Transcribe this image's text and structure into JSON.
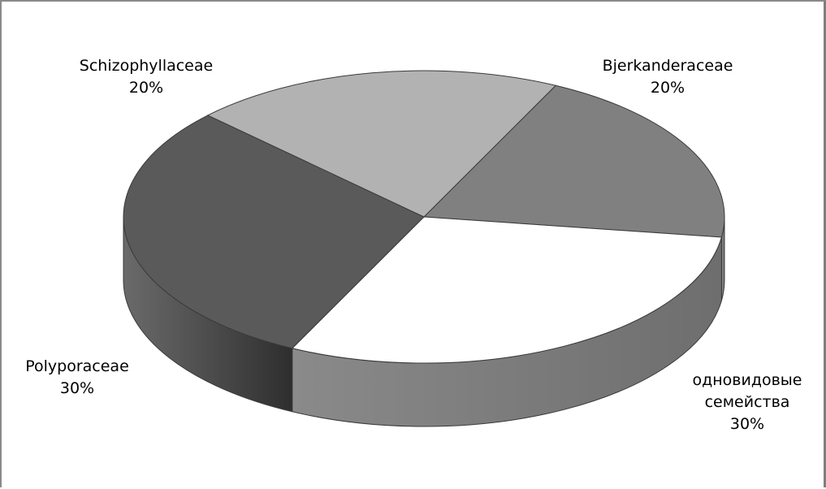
{
  "chart_data": {
    "type": "pie",
    "title": "",
    "slices": [
      {
        "label": "Bjerkanderaceae",
        "value": 20,
        "value_label": "20%",
        "color": "#808080"
      },
      {
        "label": "одновидовые семейства",
        "value": 30,
        "value_label": "30%",
        "color": "#ffffff"
      },
      {
        "label": "Polyporaceae",
        "value": 30,
        "value_label": "30%",
        "color": "#5a5a5a"
      },
      {
        "label": "Schizophyllaceae",
        "value": 20,
        "value_label": "20%",
        "color": "#b2b2b2"
      }
    ],
    "style": "3d",
    "legend": "none"
  }
}
